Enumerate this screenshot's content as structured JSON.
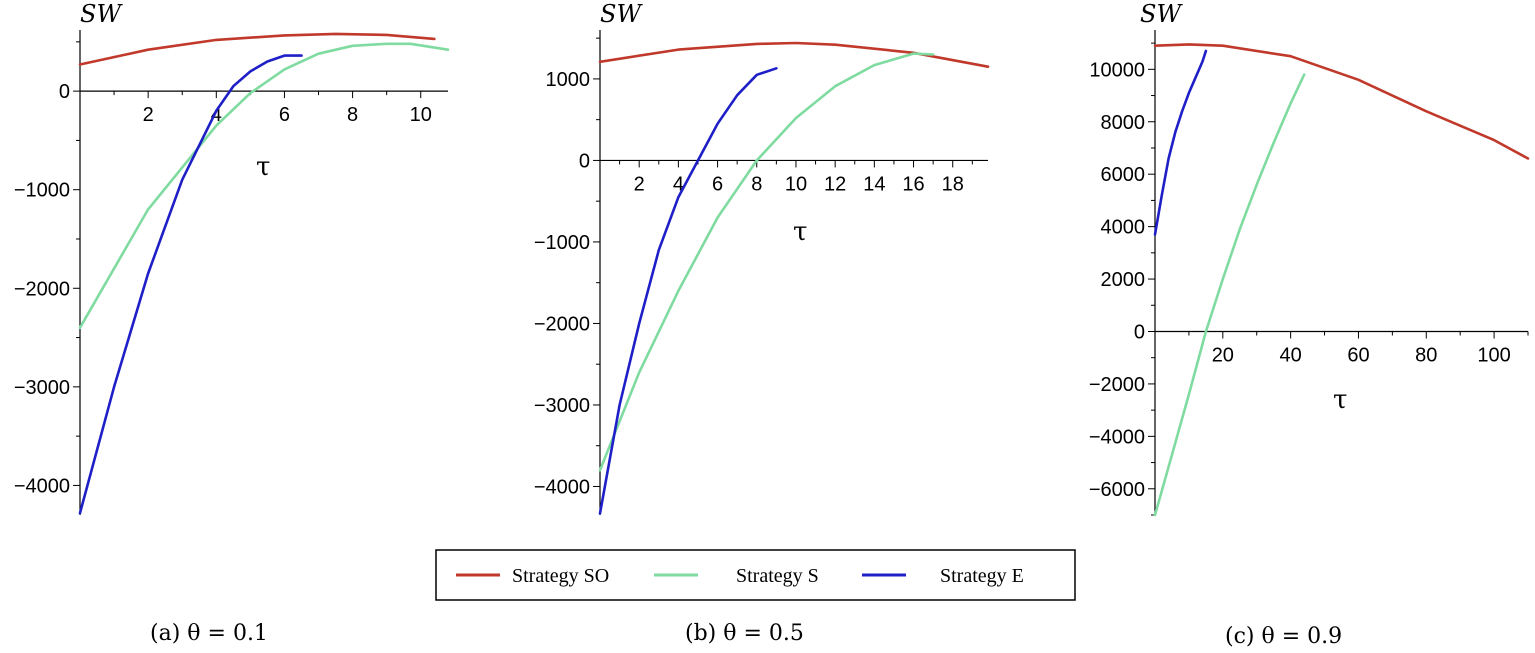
{
  "chart_data": [
    {
      "type": "line",
      "caption": "(a)  θ = 0.1",
      "xlabel": "τ",
      "ylabel": "SW",
      "xlim": [
        0,
        10.8
      ],
      "ylim": [
        -4300,
        620
      ],
      "xticks": [
        2,
        4,
        6,
        8,
        10
      ],
      "yticks": [
        -4000,
        -3000,
        -2000,
        -1000,
        0
      ],
      "ytick_labels": [
        "−4000",
        "−3000",
        "−2000",
        "−1000",
        "0"
      ],
      "series": [
        {
          "name": "Strategy SO",
          "color": "#c0392b",
          "x": [
            0,
            2,
            4,
            6,
            7.5,
            9,
            10.4
          ],
          "y": [
            270,
            420,
            520,
            565,
            580,
            570,
            530
          ]
        },
        {
          "name": "Strategy S",
          "color": "#7fdba0",
          "x": [
            0,
            2,
            4,
            5,
            6,
            7,
            8,
            9,
            9.7,
            10.8
          ],
          "y": [
            -2400,
            -1200,
            -350,
            -20,
            220,
            380,
            460,
            480,
            480,
            420
          ]
        },
        {
          "name": "Strategy E",
          "color": "#1f1fc8",
          "x": [
            0,
            1,
            2,
            3,
            4,
            4.5,
            5,
            5.5,
            6,
            6.5
          ],
          "y": [
            -4280,
            -3000,
            -1850,
            -900,
            -200,
            50,
            200,
            300,
            360,
            360
          ]
        }
      ]
    },
    {
      "type": "line",
      "caption": "(b)  θ = 0.5",
      "xlabel": "τ",
      "ylabel": "SW",
      "xlim": [
        0,
        19.8
      ],
      "ylim": [
        -4350,
        1600
      ],
      "xticks": [
        2,
        4,
        6,
        8,
        10,
        12,
        14,
        16,
        18
      ],
      "yticks": [
        -4000,
        -3000,
        -2000,
        -1000,
        0,
        1000
      ],
      "ytick_labels": [
        "−4000",
        "−3000",
        "−2000",
        "−1000",
        "0",
        "1000"
      ],
      "series": [
        {
          "name": "Strategy SO",
          "color": "#c0392b",
          "x": [
            0,
            4,
            8,
            10,
            12,
            16,
            19.8
          ],
          "y": [
            1210,
            1360,
            1430,
            1440,
            1420,
            1320,
            1150
          ]
        },
        {
          "name": "Strategy S",
          "color": "#7fdba0",
          "x": [
            0,
            2,
            4,
            6,
            8,
            10,
            12,
            14,
            16,
            17
          ],
          "y": [
            -3800,
            -2600,
            -1600,
            -700,
            0,
            520,
            910,
            1170,
            1310,
            1300
          ]
        },
        {
          "name": "Strategy E",
          "color": "#1f1fc8",
          "x": [
            0,
            1,
            2,
            3,
            4,
            5,
            6,
            7,
            8,
            9
          ],
          "y": [
            -4330,
            -3000,
            -2000,
            -1100,
            -450,
            0,
            450,
            800,
            1050,
            1130
          ]
        }
      ]
    },
    {
      "type": "line",
      "caption": "(c)  θ = 0.9",
      "xlabel": "τ",
      "ylabel": "SW",
      "xlim": [
        0,
        110
      ],
      "ylim": [
        -7000,
        11500
      ],
      "xticks": [
        20,
        40,
        60,
        80,
        100
      ],
      "yticks": [
        -6000,
        -4000,
        -2000,
        0,
        2000,
        4000,
        6000,
        8000,
        10000
      ],
      "ytick_labels": [
        "−6000",
        "−4000",
        "−2000",
        "0",
        "2000",
        "4000",
        "6000",
        "8000",
        "10000"
      ],
      "series": [
        {
          "name": "Strategy SO",
          "color": "#c0392b",
          "x": [
            0,
            10,
            20,
            40,
            60,
            80,
            100,
            110
          ],
          "y": [
            10900,
            10950,
            10900,
            10500,
            9600,
            8400,
            7300,
            6600
          ]
        },
        {
          "name": "Strategy S",
          "color": "#7fdba0",
          "x": [
            0,
            5,
            10,
            15,
            20,
            25,
            30,
            35,
            40,
            44
          ],
          "y": [
            -7000,
            -4700,
            -2400,
            0,
            2000,
            3900,
            5600,
            7200,
            8700,
            9800
          ]
        },
        {
          "name": "Strategy E",
          "color": "#1f1fc8",
          "x": [
            0,
            2,
            4,
            6,
            8,
            10,
            12,
            14,
            15
          ],
          "y": [
            3700,
            5200,
            6600,
            7600,
            8400,
            9100,
            9700,
            10300,
            10700
          ]
        }
      ]
    }
  ],
  "legend": {
    "placement": "bottom-center",
    "items": [
      {
        "label": "Strategy SO",
        "color": "#c0392b"
      },
      {
        "label": "Strategy S",
        "color": "#7fdba0"
      },
      {
        "label": "Strategy E",
        "color": "#1f1fc8"
      }
    ]
  }
}
